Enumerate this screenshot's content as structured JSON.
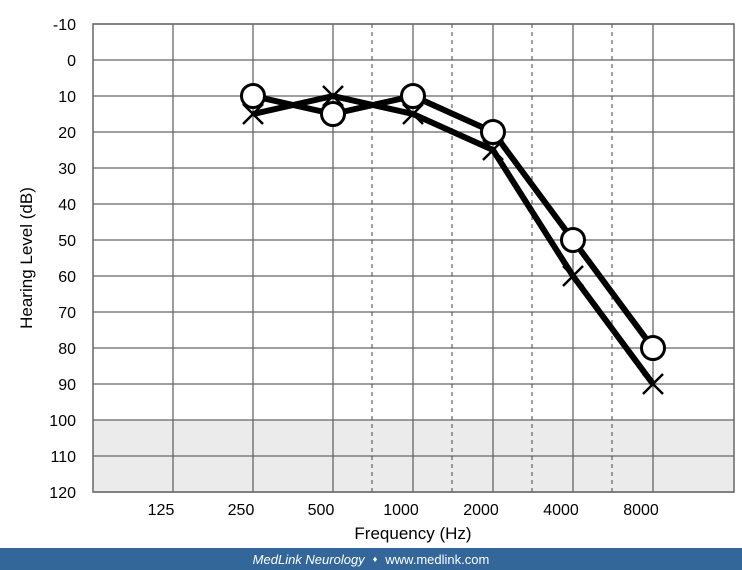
{
  "chart_data": {
    "type": "line",
    "title": "",
    "xlabel": "Frequency (Hz)",
    "ylabel": "Hearing Level (dB)",
    "x_ticks": [
      "125",
      "250",
      "500",
      "1000",
      "2000",
      "4000",
      "8000"
    ],
    "y_ticks": [
      -10,
      0,
      10,
      20,
      30,
      40,
      50,
      60,
      70,
      80,
      90,
      100,
      110,
      120
    ],
    "ylim": [
      -10,
      120
    ],
    "y_inverted": true,
    "grid": true,
    "shaded_region": [
      100,
      120
    ],
    "shaded_color": "#ebebeb",
    "series": [
      {
        "marker": "circle",
        "x": [
          "250",
          "500",
          "1000",
          "2000",
          "4000",
          "8000"
        ],
        "values": [
          10,
          15,
          10,
          20,
          50,
          80
        ]
      },
      {
        "marker": "cross",
        "x": [
          "250",
          "500",
          "1000",
          "2000",
          "4000",
          "8000"
        ],
        "values": [
          15,
          10,
          15,
          25,
          60,
          90
        ]
      }
    ],
    "line_color": "#000000"
  },
  "footer": {
    "brand": "MedLink Neurology",
    "separator": "♦",
    "url": "www.medlink.com",
    "background": "#336699"
  }
}
